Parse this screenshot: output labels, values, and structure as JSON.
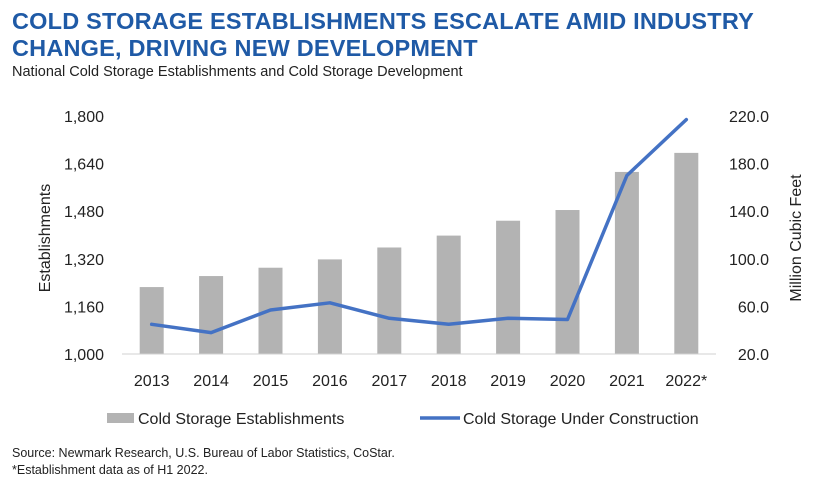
{
  "header": {
    "title_line1": "COLD STORAGE ESTABLISHMENTS ESCALATE AMID INDUSTRY",
    "title_line2": "CHANGE, DRIVING NEW DEVELOPMENT",
    "subtitle": "National Cold Storage Establishments and Cold Storage Development"
  },
  "footer": {
    "source": "Source: Newmark Research, U.S. Bureau of Labor Statistics, CoStar.",
    "note": "*Establishment data as of H1 2022."
  },
  "colors": {
    "bar": "#b3b3b3",
    "line": "#4472c4",
    "title": "#1f5aa6"
  },
  "chart_data": {
    "type": "bar",
    "title": "National Cold Storage Establishments and Cold Storage Development",
    "categories": [
      "2013",
      "2014",
      "2015",
      "2016",
      "2017",
      "2018",
      "2019",
      "2020",
      "2021",
      "2022*"
    ],
    "series": [
      {
        "name": "Cold Storage Establishments",
        "type": "bar",
        "axis": "left",
        "values": [
          1225,
          1262,
          1290,
          1318,
          1358,
          1398,
          1448,
          1484,
          1612,
          1676
        ]
      },
      {
        "name": "Cold Storage Under Construction",
        "type": "line",
        "axis": "right",
        "values": [
          45,
          38,
          57,
          63,
          50,
          45,
          50,
          49,
          170,
          217
        ]
      }
    ],
    "ylabel": "Establishments",
    "ylim": [
      1000,
      1800
    ],
    "yticks": [
      "1,000",
      "1,160",
      "1,320",
      "1,480",
      "1,640",
      "1,800"
    ],
    "y2label": "Million Cubic Feet",
    "y2lim": [
      20,
      220
    ],
    "y2ticks": [
      "20.0",
      "60.0",
      "100.0",
      "140.0",
      "180.0",
      "220.0"
    ],
    "legend_position": "bottom"
  }
}
